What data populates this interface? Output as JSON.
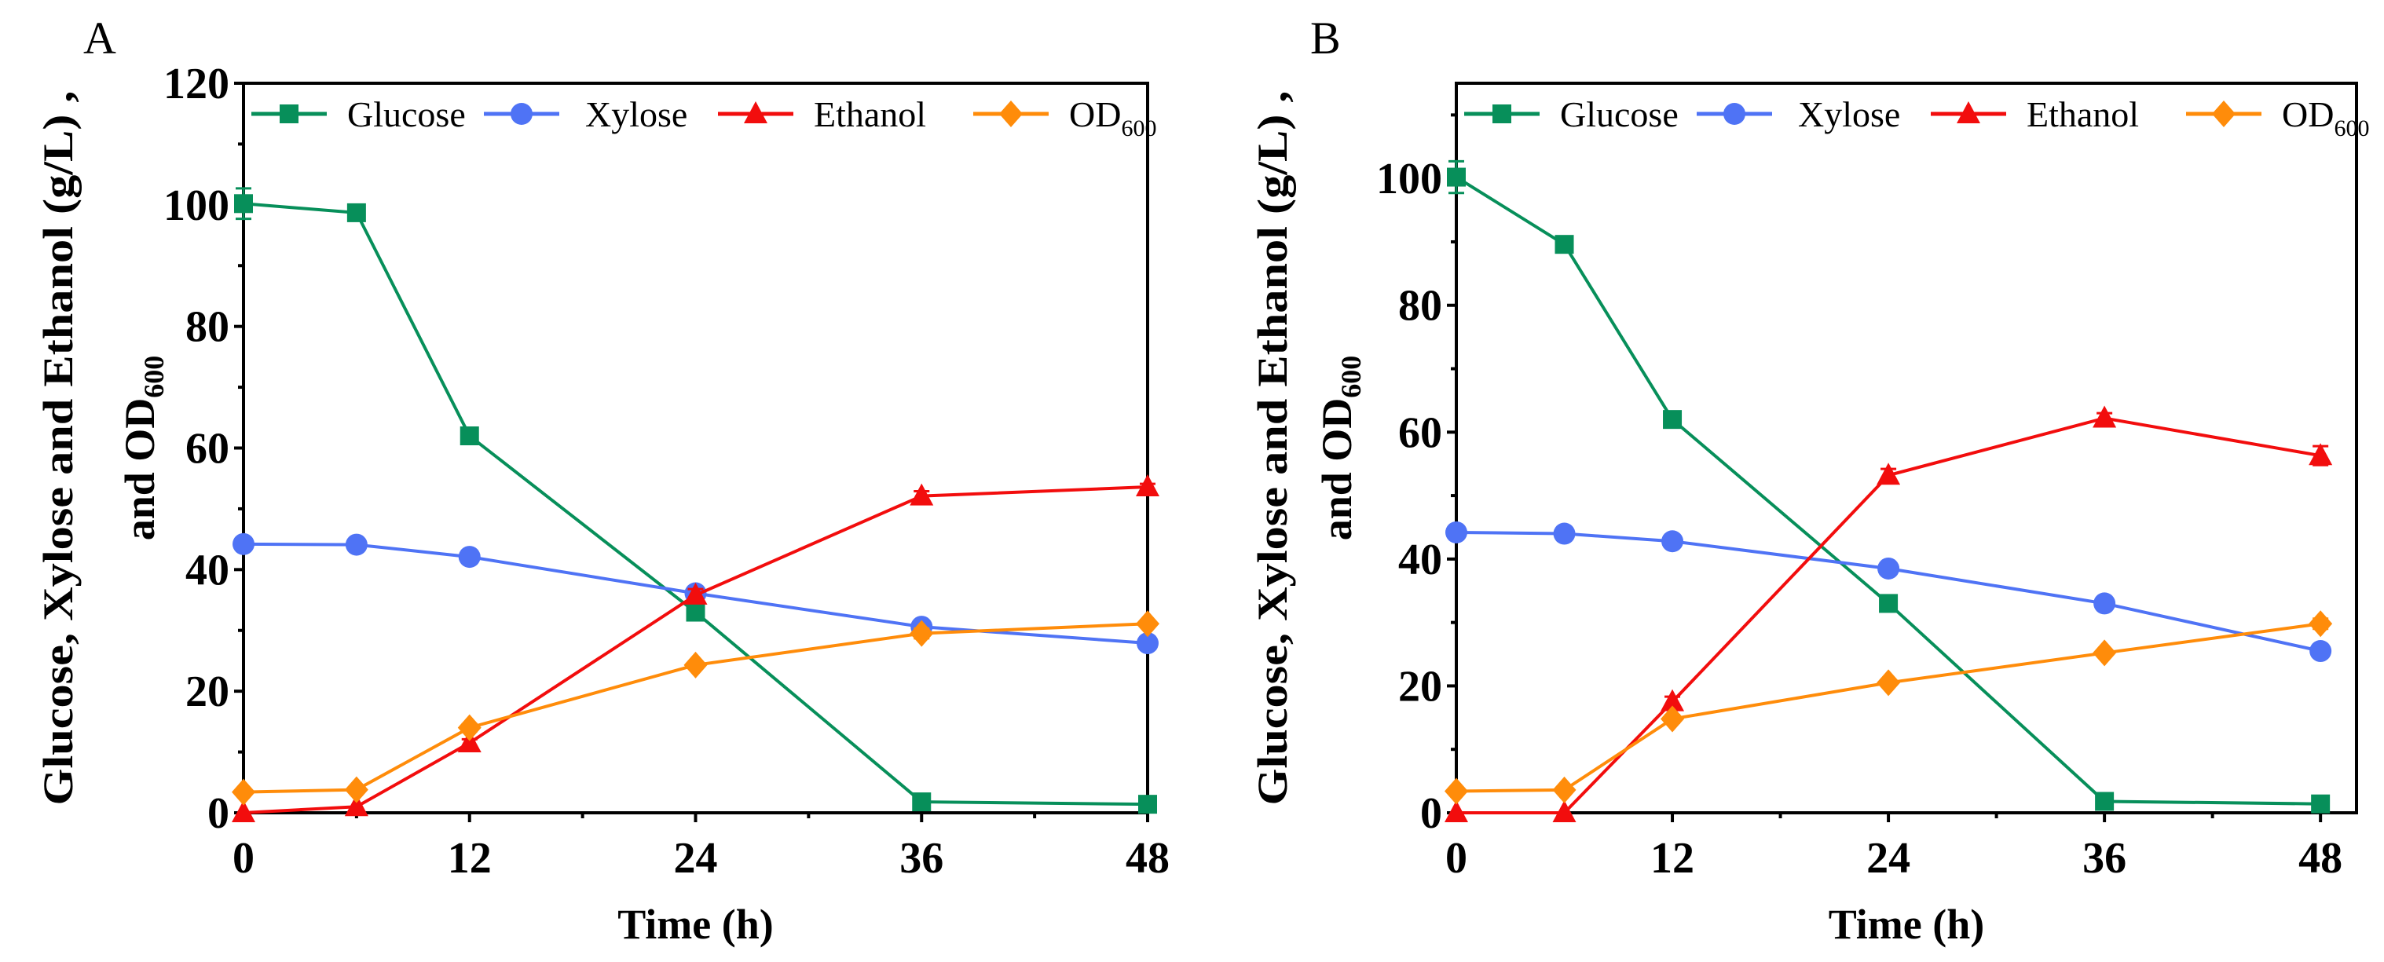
{
  "colors": {
    "Glucose": "#078f5a",
    "Xylose": "#4f73f5",
    "Ethanol": "#f20d0d",
    "OD600": "#ff8c0a"
  },
  "chart_data": [
    {
      "type": "line",
      "panel_label": "A",
      "xlabel": "Time (h)",
      "ylabel_line1": "Glucose, Xylose and Ethanol (g/L) ,",
      "ylabel_line2": "and OD",
      "ylabel_sub": "600",
      "x": [
        0,
        6,
        12,
        24,
        36,
        48
      ],
      "xlim": [
        0,
        48
      ],
      "ylim": [
        0,
        120
      ],
      "xticks": [
        0,
        12,
        24,
        36,
        48
      ],
      "yticks": [
        0,
        20,
        40,
        60,
        80,
        100,
        120
      ],
      "legend": "top",
      "series": [
        {
          "name": "Glucose",
          "marker": "square",
          "values": [
            100.2,
            98.7,
            62.0,
            33.0,
            1.8,
            1.4
          ],
          "errors": [
            2.5,
            0.8,
            0.8,
            0.5,
            0.3,
            0.3
          ]
        },
        {
          "name": "Xylose",
          "marker": "circle",
          "values": [
            44.2,
            44.1,
            42.1,
            36.1,
            30.6,
            27.9
          ],
          "errors": [
            0.5,
            0.8,
            0.8,
            0.5,
            0.6,
            0.4
          ]
        },
        {
          "name": "Ethanol",
          "marker": "triangle",
          "values": [
            0.0,
            1.0,
            11.5,
            35.8,
            52.1,
            53.6
          ],
          "errors": [
            0.2,
            0.3,
            0.6,
            1.0,
            0.8,
            0.5
          ]
        },
        {
          "name": "OD",
          "sub": "600",
          "marker": "diamond",
          "values": [
            3.4,
            3.8,
            14.0,
            24.3,
            29.5,
            31.1
          ],
          "errors": [
            0.2,
            0.3,
            0.6,
            0.5,
            0.8,
            0.5
          ]
        }
      ]
    },
    {
      "type": "line",
      "panel_label": "B",
      "xlabel": "Time (h)",
      "ylabel_line1": "Glucose, Xylose and Ethanol (g/L) ,",
      "ylabel_line2": "and OD",
      "ylabel_sub": "600",
      "x": [
        0,
        6,
        12,
        24,
        36,
        48
      ],
      "xlim": [
        0,
        50
      ],
      "ylim": [
        0,
        115
      ],
      "xticks": [
        0,
        12,
        24,
        36,
        48
      ],
      "yticks": [
        0,
        20,
        40,
        60,
        80,
        100
      ],
      "legend": "top",
      "series": [
        {
          "name": "Glucose",
          "marker": "square",
          "values": [
            100.2,
            89.6,
            62.0,
            33.0,
            1.8,
            1.4
          ],
          "errors": [
            2.5,
            0.8,
            0.6,
            0.5,
            0.3,
            0.3
          ]
        },
        {
          "name": "Xylose",
          "marker": "circle",
          "values": [
            44.2,
            44.0,
            42.8,
            38.5,
            33.0,
            25.5
          ],
          "errors": [
            0.5,
            0.6,
            0.7,
            0.5,
            0.6,
            0.7
          ]
        },
        {
          "name": "Ethanol",
          "marker": "triangle",
          "values": [
            0.0,
            0.0,
            17.5,
            53.2,
            62.2,
            56.3
          ],
          "errors": [
            0.2,
            0.2,
            0.8,
            1.0,
            0.8,
            1.5
          ]
        },
        {
          "name": "OD",
          "sub": "600",
          "marker": "diamond",
          "values": [
            3.4,
            3.6,
            14.8,
            20.5,
            25.2,
            29.8
          ],
          "errors": [
            0.2,
            0.3,
            0.6,
            0.5,
            0.5,
            0.8
          ]
        }
      ]
    }
  ]
}
